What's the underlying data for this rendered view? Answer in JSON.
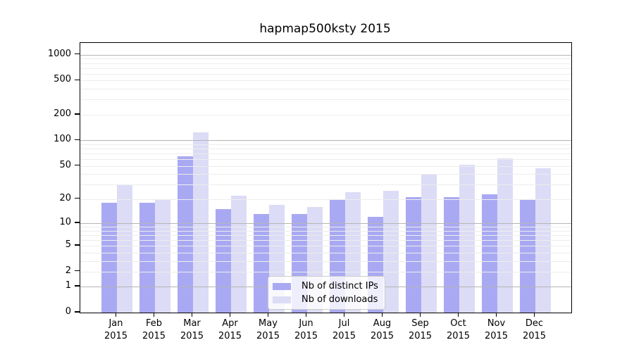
{
  "title": "hapmap500ksty 2015",
  "chart_data": {
    "type": "bar",
    "title": "hapmap500ksty 2015",
    "categories": [
      "Jan",
      "Feb",
      "Mar",
      "Apr",
      "May",
      "Jun",
      "Jul",
      "Aug",
      "Sep",
      "Oct",
      "Nov",
      "Dec"
    ],
    "year_label": "2015",
    "series": [
      {
        "name": "Nb of distinct IPs",
        "color": "#a9a9f3",
        "values": [
          18,
          18,
          65,
          15,
          13,
          13,
          20,
          12,
          21,
          21,
          23,
          20
        ]
      },
      {
        "name": "Nb of downloads",
        "color": "#dcdcf6",
        "values": [
          30,
          20,
          123,
          22,
          17,
          16,
          24,
          25,
          39,
          52,
          61,
          47
        ]
      }
    ],
    "yscale": "log1p",
    "yticks": [
      0,
      1,
      2,
      5,
      10,
      20,
      50,
      100,
      200,
      500,
      1000
    ],
    "ylim": [
      0,
      1370
    ],
    "grid": "on",
    "gridline_major_values": [
      1,
      10,
      100,
      1000
    ],
    "legend_position": "lower center",
    "colors": {
      "grid_major": "#b5b5b5",
      "grid_minor": "#ededed",
      "axis": "#000000",
      "background": "#ffffff"
    }
  }
}
